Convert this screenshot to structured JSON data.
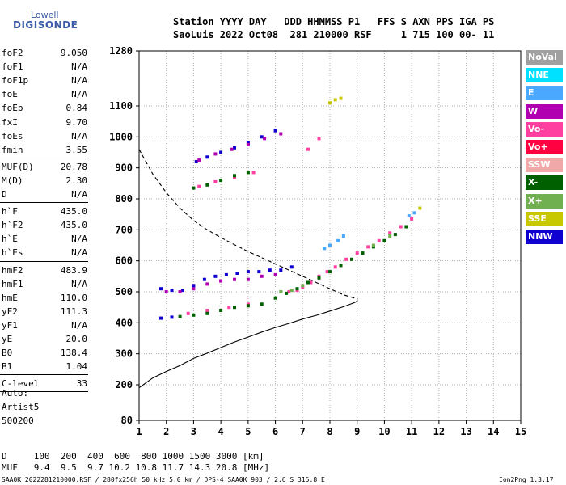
{
  "logo": {
    "line1": "Lowell",
    "line2": "DIGISONDE"
  },
  "header": {
    "line1": "Station YYYY DAY   DDD HHMMSS P1   FFS S AXN PPS IGA PS",
    "line2": "SaoLuis 2022 Oct08  281 210000 RSF     1 715 100 00- 11"
  },
  "params": [
    {
      "group": 1,
      "items": [
        {
          "k": "foF2",
          "v": "9.050"
        },
        {
          "k": "foF1",
          "v": "N/A"
        },
        {
          "k": "foF1p",
          "v": "N/A"
        },
        {
          "k": "foE",
          "v": "N/A"
        },
        {
          "k": "foEp",
          "v": "0.84"
        },
        {
          "k": "fxI",
          "v": "9.70"
        },
        {
          "k": "foEs",
          "v": "N/A"
        },
        {
          "k": "fmin",
          "v": "3.55"
        }
      ]
    },
    {
      "group": 2,
      "items": [
        {
          "k": "MUF(D)",
          "v": "20.78"
        },
        {
          "k": "M(D)",
          "v": "2.30"
        },
        {
          "k": "D",
          "v": "N/A"
        }
      ]
    },
    {
      "group": 3,
      "items": [
        {
          "k": "h`F",
          "v": "435.0"
        },
        {
          "k": "h`F2",
          "v": "435.0"
        },
        {
          "k": "h`E",
          "v": "N/A"
        },
        {
          "k": "h`Es",
          "v": "N/A"
        }
      ]
    },
    {
      "group": 4,
      "items": [
        {
          "k": "hmF2",
          "v": "483.9"
        },
        {
          "k": "hmF1",
          "v": "N/A"
        },
        {
          "k": "hmE",
          "v": "110.0"
        },
        {
          "k": "yF2",
          "v": "111.3"
        },
        {
          "k": "yF1",
          "v": "N/A"
        },
        {
          "k": "yE",
          "v": "20.0"
        },
        {
          "k": "B0",
          "v": "138.4"
        },
        {
          "k": "B1",
          "v": "1.04"
        }
      ]
    },
    {
      "group": 5,
      "items": [
        {
          "k": "C-level",
          "v": "33"
        }
      ]
    }
  ],
  "auto": {
    "l1": "Auto:",
    "l2": "Artist5",
    "l3": "500200"
  },
  "legend": [
    {
      "label": "NoVal",
      "color": "#a0a0a0"
    },
    {
      "label": "NNE",
      "color": "#00e0ff"
    },
    {
      "label": "E",
      "color": "#4aa8ff"
    },
    {
      "label": "W",
      "color": "#b000b0"
    },
    {
      "label": "Vo-",
      "color": "#ff40a0"
    },
    {
      "label": "Vo+",
      "color": "#ff0040"
    },
    {
      "label": "SSW",
      "color": "#f0a8a8"
    },
    {
      "label": "X-",
      "color": "#006000"
    },
    {
      "label": "X+",
      "color": "#70b050"
    },
    {
      "label": "SSE",
      "color": "#c8c800"
    },
    {
      "label": "NNW",
      "color": "#1000d0"
    }
  ],
  "chart_data": {
    "type": "scatter",
    "x_ticks": [
      "1",
      "2",
      "3",
      "4",
      "5",
      "6",
      "7",
      "8",
      "9",
      "10",
      "11",
      "12",
      "13",
      "14",
      "15"
    ],
    "y_ticks": [
      "80",
      "200",
      "300",
      "400",
      "500",
      "600",
      "700",
      "800",
      "900",
      "1000",
      "1100",
      "1280"
    ],
    "xlim": [
      1,
      15
    ],
    "ylim": [
      80,
      1280
    ],
    "grid": true,
    "series": [
      {
        "name": "NNW",
        "color": "#1000d0",
        "points": [
          [
            1.8,
            510
          ],
          [
            2.2,
            505
          ],
          [
            2.6,
            505
          ],
          [
            3.0,
            520
          ],
          [
            3.4,
            540
          ],
          [
            3.8,
            550
          ],
          [
            4.2,
            555
          ],
          [
            4.6,
            560
          ],
          [
            5.0,
            565
          ],
          [
            5.4,
            565
          ],
          [
            5.8,
            570
          ],
          [
            6.2,
            570
          ],
          [
            6.6,
            580
          ],
          [
            3.1,
            920
          ],
          [
            3.5,
            935
          ],
          [
            4.0,
            950
          ],
          [
            4.5,
            965
          ],
          [
            5.0,
            980
          ],
          [
            5.5,
            1000
          ],
          [
            6.0,
            1020
          ],
          [
            1.8,
            415
          ],
          [
            2.2,
            418
          ]
        ]
      },
      {
        "name": "W",
        "color": "#b000b0",
        "points": [
          [
            2.0,
            500
          ],
          [
            2.5,
            500
          ],
          [
            3.0,
            510
          ],
          [
            3.5,
            525
          ],
          [
            4.0,
            535
          ],
          [
            4.5,
            540
          ],
          [
            5.0,
            540
          ],
          [
            5.5,
            550
          ],
          [
            6.0,
            555
          ],
          [
            3.2,
            925
          ],
          [
            3.8,
            945
          ],
          [
            4.4,
            960
          ],
          [
            5.0,
            975
          ],
          [
            5.6,
            995
          ],
          [
            6.2,
            1010
          ]
        ]
      },
      {
        "name": "Vo-",
        "color": "#ff40a0",
        "points": [
          [
            6.5,
            500
          ],
          [
            6.8,
            505
          ],
          [
            7.0,
            515
          ],
          [
            7.3,
            530
          ],
          [
            7.6,
            550
          ],
          [
            7.9,
            565
          ],
          [
            8.2,
            580
          ],
          [
            8.6,
            605
          ],
          [
            9.0,
            625
          ],
          [
            9.4,
            645
          ],
          [
            9.8,
            665
          ],
          [
            10.2,
            690
          ],
          [
            10.6,
            710
          ],
          [
            11.0,
            735
          ],
          [
            2.8,
            430
          ],
          [
            3.5,
            440
          ],
          [
            4.3,
            450
          ],
          [
            5.0,
            460
          ],
          [
            3.2,
            840
          ],
          [
            3.8,
            855
          ],
          [
            4.5,
            870
          ],
          [
            5.2,
            885
          ],
          [
            7.2,
            960
          ],
          [
            7.6,
            995
          ]
        ]
      },
      {
        "name": "X-",
        "color": "#006000",
        "points": [
          [
            2.5,
            420
          ],
          [
            3.0,
            425
          ],
          [
            3.5,
            430
          ],
          [
            4.0,
            440
          ],
          [
            4.5,
            450
          ],
          [
            5.0,
            455
          ],
          [
            5.5,
            460
          ],
          [
            6.0,
            480
          ],
          [
            6.4,
            495
          ],
          [
            6.8,
            510
          ],
          [
            7.2,
            530
          ],
          [
            7.6,
            545
          ],
          [
            8.0,
            565
          ],
          [
            8.4,
            585
          ],
          [
            8.8,
            605
          ],
          [
            9.2,
            625
          ],
          [
            9.6,
            645
          ],
          [
            10.0,
            665
          ],
          [
            10.4,
            685
          ],
          [
            10.8,
            710
          ],
          [
            3.0,
            835
          ],
          [
            3.5,
            845
          ],
          [
            4.0,
            860
          ],
          [
            4.5,
            875
          ],
          [
            5.0,
            885
          ]
        ]
      },
      {
        "name": "E",
        "color": "#4aa8ff",
        "points": [
          [
            7.8,
            640
          ],
          [
            8.0,
            650
          ],
          [
            8.3,
            665
          ],
          [
            8.5,
            680
          ],
          [
            10.9,
            745
          ],
          [
            11.1,
            755
          ]
        ]
      },
      {
        "name": "X+",
        "color": "#70b050",
        "points": [
          [
            6.2,
            500
          ],
          [
            6.6,
            505
          ],
          [
            7.0,
            520
          ],
          [
            9.6,
            650
          ],
          [
            10.2,
            680
          ]
        ]
      },
      {
        "name": "SSE",
        "color": "#c8c800",
        "points": [
          [
            8.0,
            1110
          ],
          [
            8.2,
            1120
          ],
          [
            8.4,
            1125
          ],
          [
            11.3,
            770
          ]
        ]
      }
    ],
    "lines": [
      {
        "name": "profile-dashed",
        "style": "dashed",
        "points": [
          [
            1.0,
            960
          ],
          [
            1.5,
            880
          ],
          [
            2.0,
            820
          ],
          [
            2.5,
            770
          ],
          [
            3.0,
            730
          ],
          [
            3.5,
            700
          ],
          [
            4.0,
            675
          ],
          [
            4.5,
            652
          ],
          [
            5.0,
            630
          ],
          [
            5.5,
            610
          ],
          [
            6.0,
            590
          ],
          [
            6.5,
            570
          ],
          [
            7.0,
            550
          ],
          [
            7.5,
            530
          ],
          [
            8.0,
            510
          ],
          [
            8.5,
            490
          ],
          [
            8.9,
            480
          ]
        ]
      },
      {
        "name": "profile-solid",
        "style": "solid",
        "points": [
          [
            1.0,
            190
          ],
          [
            1.5,
            222
          ],
          [
            2.0,
            243
          ],
          [
            2.5,
            262
          ],
          [
            3.0,
            285
          ],
          [
            3.5,
            302
          ],
          [
            4.0,
            320
          ],
          [
            4.5,
            338
          ],
          [
            5.0,
            354
          ],
          [
            5.5,
            370
          ],
          [
            6.0,
            385
          ],
          [
            6.5,
            398
          ],
          [
            7.0,
            412
          ],
          [
            7.5,
            424
          ],
          [
            8.0,
            438
          ],
          [
            8.5,
            452
          ],
          [
            8.9,
            465
          ],
          [
            9.0,
            470
          ],
          [
            9.0,
            480
          ]
        ]
      }
    ]
  },
  "bottom": {
    "d_row": "D     100  200  400  600  800 1000 1500 3000 [km]",
    "muf_row": "MUF   9.4  9.5  9.7 10.2 10.8 11.7 14.3 20.8 [MHz]"
  },
  "footer": {
    "left": "SAA0K_2022281210000.RSF / 280fx256h 50 kHz 5.0 km / DPS-4 SAA0K 903 / 2.6 S 315.8 E",
    "right": "Ion2Png 1.3.17"
  }
}
